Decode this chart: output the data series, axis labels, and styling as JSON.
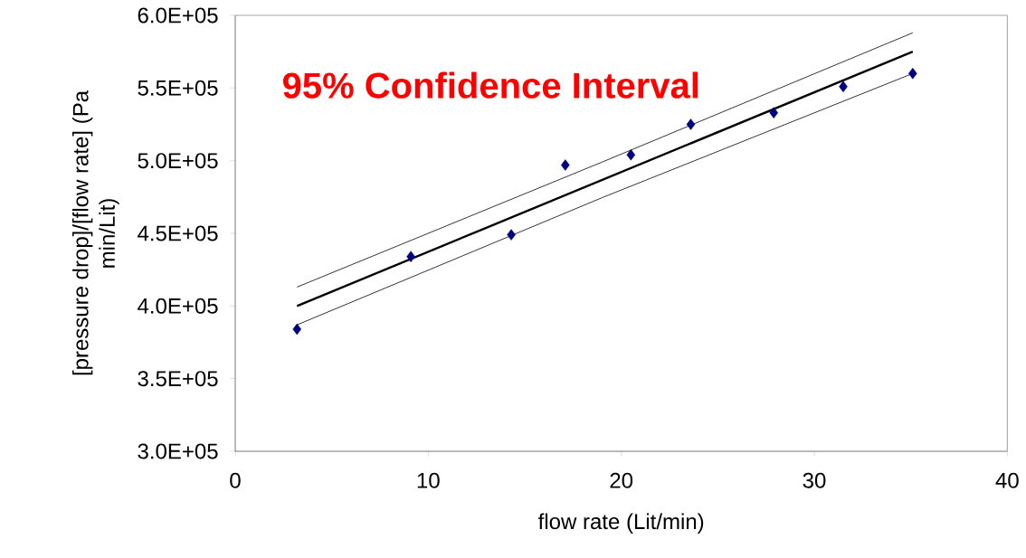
{
  "chart_data": {
    "type": "scatter",
    "xlabel": "flow rate (Lit/min)",
    "ylabel": "[pressure drop]/[flow rate] (Pa min/Lit)",
    "annotations": [
      "95% Confidence Interval"
    ],
    "xlim": [
      0,
      40
    ],
    "xticks": [
      0,
      10,
      20,
      30,
      40
    ],
    "ylim": [
      300000,
      600000
    ],
    "yticks": [
      {
        "value": 300000,
        "label": "3.0E+05"
      },
      {
        "value": 350000,
        "label": "3.5E+05"
      },
      {
        "value": 400000,
        "label": "4.0E+05"
      },
      {
        "value": 450000,
        "label": "4.5E+05"
      },
      {
        "value": 500000,
        "label": "5.0E+05"
      },
      {
        "value": 550000,
        "label": "5.5E+05"
      },
      {
        "value": 600000,
        "label": "6.0E+05"
      }
    ],
    "series": [
      {
        "marker": "diamond",
        "color": "#000080",
        "x": [
          3.2,
          9.1,
          14.3,
          17.1,
          20.5,
          23.6,
          27.9,
          31.5,
          35.1
        ],
        "values": [
          384000,
          434000,
          449000,
          497000,
          504000,
          525000,
          533000,
          551000,
          560000
        ]
      },
      {
        "type": "line",
        "marker": "none",
        "color": "#000000",
        "x": [
          3.2,
          35.1
        ],
        "values": [
          400000,
          575000
        ]
      },
      {
        "type": "line",
        "marker": "none",
        "color": "#000000",
        "x": [
          3.2,
          19,
          35.1
        ],
        "values": [
          413000,
          499000,
          588000
        ]
      },
      {
        "type": "line",
        "marker": "none",
        "color": "#000000",
        "x": [
          3.2,
          19,
          35.1
        ],
        "values": [
          387000,
          474500,
          560000
        ]
      }
    ]
  }
}
